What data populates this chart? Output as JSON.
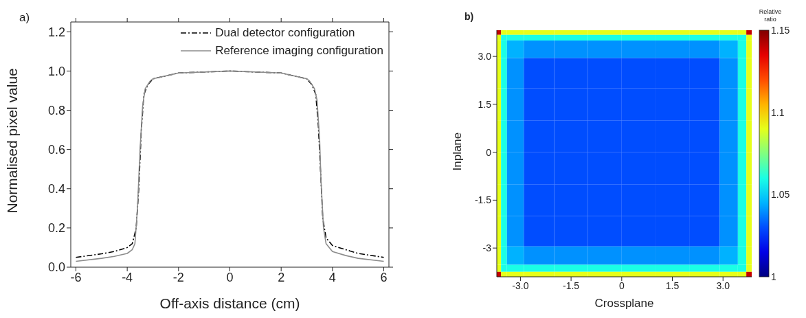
{
  "chart_data": [
    {
      "type": "line",
      "xlabel": "Off-axis distance (cm)",
      "ylabel": "Normalised pixel value",
      "annotations": [
        "a)"
      ],
      "legend": "top right",
      "marker": "none",
      "xlim": [
        -6.2,
        6.2
      ],
      "xticks": [
        -6,
        -4,
        -2,
        0,
        2,
        4,
        6
      ],
      "ylim": [
        0,
        1.25
      ],
      "yticks": [
        {
          "value": 0,
          "label": "0.0"
        },
        {
          "value": 0.2,
          "label": "0.2"
        },
        {
          "value": 0.4,
          "label": "0.4"
        },
        {
          "value": 0.6,
          "label": "0.6"
        },
        {
          "value": 0.8,
          "label": "0.8"
        },
        {
          "value": 1,
          "label": "1.0"
        },
        {
          "value": 1.2,
          "label": "1.2"
        }
      ],
      "series": [
        {
          "name": "Dual detector configuration",
          "color": "#000000",
          "line_style": "dashdot",
          "x": [
            -6,
            -5,
            -4.5,
            -4,
            -3.8,
            -3.65,
            -3.55,
            -3.45,
            -3.35,
            -3.2,
            -3,
            -2,
            0,
            2,
            3,
            3.2,
            3.35,
            3.45,
            3.55,
            3.62,
            3.75,
            4,
            4.5,
            5,
            6
          ],
          "values": [
            0.05,
            0.068,
            0.08,
            0.1,
            0.12,
            0.2,
            0.4,
            0.7,
            0.88,
            0.93,
            0.96,
            0.99,
            1.0,
            0.99,
            0.96,
            0.93,
            0.88,
            0.72,
            0.45,
            0.25,
            0.15,
            0.11,
            0.09,
            0.07,
            0.05
          ]
        },
        {
          "name": "Reference imaging configuration",
          "color": "#8c8c8c",
          "line_style": "solid",
          "x": [
            -6,
            -5,
            -4.5,
            -4,
            -3.8,
            -3.7,
            -3.6,
            -3.5,
            -3.4,
            -3.3,
            -3.1,
            -3,
            -2,
            0,
            2,
            3,
            3.1,
            3.3,
            3.4,
            3.5,
            3.55,
            3.65,
            3.75,
            4,
            4.5,
            5,
            6
          ],
          "values": [
            0.03,
            0.045,
            0.055,
            0.07,
            0.09,
            0.12,
            0.3,
            0.6,
            0.82,
            0.91,
            0.95,
            0.96,
            0.99,
            1.0,
            0.99,
            0.96,
            0.95,
            0.91,
            0.85,
            0.65,
            0.45,
            0.2,
            0.12,
            0.08,
            0.06,
            0.045,
            0.03
          ]
        }
      ]
    },
    {
      "type": "heatmap",
      "xlabel": "Crossplane",
      "ylabel": "Inplane",
      "clabel": "Relative ratio",
      "annotations": [
        "b)"
      ],
      "xlim": [
        -3.7,
        3.85
      ],
      "xticks": [
        {
          "value": -3,
          "label": "-3.0"
        },
        {
          "value": -1.5,
          "label": "-1.5"
        },
        {
          "value": 0,
          "label": "0"
        },
        {
          "value": 1.5,
          "label": "1.5"
        },
        {
          "value": 3,
          "label": "3.0"
        }
      ],
      "ylim": [
        -3.9,
        3.82
      ],
      "yticks": [
        {
          "value": -3,
          "label": "-3"
        },
        {
          "value": -1.5,
          "label": "-1.5"
        },
        {
          "value": 0,
          "label": "0"
        },
        {
          "value": 1.5,
          "label": "1.5"
        },
        {
          "value": 3,
          "label": "3.0"
        }
      ],
      "clim": [
        1,
        1.15
      ],
      "cticks": [
        1,
        1.05,
        1.1,
        1.15
      ],
      "x": [
        -3.65,
        -3.5,
        -3.3,
        -2.5,
        -1.5,
        -0.5,
        0.5,
        1.5,
        2.5,
        3.3,
        3.58,
        3.8
      ],
      "y": [
        3.75,
        3.6,
        3.4,
        2.5,
        1.5,
        0.5,
        -0.5,
        -1.5,
        -2.5,
        -3.4,
        -3.65,
        -3.84
      ],
      "cells": [
        [
          1.14,
          1.09,
          1.09,
          1.09,
          1.09,
          1.09,
          1.09,
          1.09,
          1.09,
          1.09,
          1.09,
          1.14
        ],
        [
          1.09,
          1.06,
          1.06,
          1.06,
          1.06,
          1.06,
          1.06,
          1.06,
          1.06,
          1.06,
          1.06,
          1.09
        ],
        [
          1.09,
          1.06,
          1.045,
          1.04,
          1.04,
          1.04,
          1.04,
          1.04,
          1.04,
          1.045,
          1.06,
          1.09
        ],
        [
          1.09,
          1.06,
          1.04,
          1.03,
          1.03,
          1.03,
          1.03,
          1.03,
          1.03,
          1.04,
          1.06,
          1.09
        ],
        [
          1.09,
          1.06,
          1.04,
          1.03,
          1.03,
          1.03,
          1.03,
          1.03,
          1.03,
          1.04,
          1.06,
          1.09
        ],
        [
          1.09,
          1.06,
          1.04,
          1.03,
          1.03,
          1.03,
          1.03,
          1.03,
          1.03,
          1.04,
          1.06,
          1.09
        ],
        [
          1.09,
          1.06,
          1.04,
          1.03,
          1.03,
          1.03,
          1.03,
          1.03,
          1.03,
          1.04,
          1.06,
          1.09
        ],
        [
          1.09,
          1.06,
          1.04,
          1.03,
          1.03,
          1.03,
          1.03,
          1.03,
          1.03,
          1.04,
          1.06,
          1.09
        ],
        [
          1.09,
          1.06,
          1.04,
          1.03,
          1.03,
          1.03,
          1.03,
          1.03,
          1.03,
          1.04,
          1.06,
          1.09
        ],
        [
          1.09,
          1.06,
          1.045,
          1.04,
          1.04,
          1.04,
          1.04,
          1.04,
          1.04,
          1.045,
          1.06,
          1.09
        ],
        [
          1.09,
          1.06,
          1.06,
          1.06,
          1.06,
          1.06,
          1.06,
          1.06,
          1.06,
          1.06,
          1.06,
          1.09
        ],
        [
          1.14,
          1.09,
          1.09,
          1.09,
          1.09,
          1.09,
          1.09,
          1.09,
          1.09,
          1.09,
          1.09,
          1.14
        ]
      ]
    }
  ]
}
